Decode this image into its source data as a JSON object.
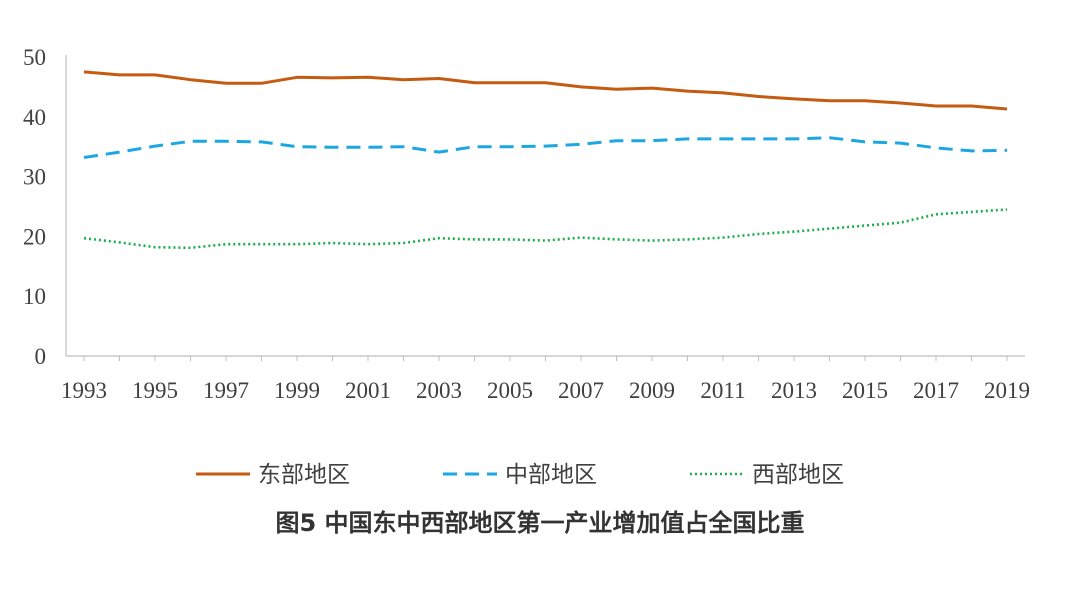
{
  "caption": "图5  中国东中西部地区第一产业增加值占全国比重",
  "colors": {
    "east": "#C55A11",
    "central": "#1CA7E1",
    "west": "#1AAF4B",
    "axis": "#bfbfbf",
    "text": "#404040"
  },
  "chart_data": {
    "type": "line",
    "title": "",
    "xlabel": "",
    "ylabel": "",
    "ylim": [
      0,
      50
    ],
    "yticks": [
      0,
      10,
      20,
      30,
      40,
      50
    ],
    "xticks": [
      1993,
      1995,
      1997,
      1999,
      2001,
      2003,
      2005,
      2007,
      2009,
      2011,
      2013,
      2015,
      2017,
      2019
    ],
    "grid": false,
    "legend_position": "bottom",
    "x": [
      1993,
      1994,
      1995,
      1996,
      1997,
      1998,
      1999,
      2000,
      2001,
      2002,
      2003,
      2004,
      2005,
      2006,
      2007,
      2008,
      2009,
      2010,
      2011,
      2012,
      2013,
      2014,
      2015,
      2016,
      2017,
      2018,
      2019
    ],
    "series": [
      {
        "name": "东部地区",
        "color": "#C55A11",
        "style": "solid",
        "values": [
          47.5,
          47.0,
          47.0,
          46.2,
          45.6,
          45.6,
          46.6,
          46.5,
          46.6,
          46.2,
          46.4,
          45.7,
          45.7,
          45.7,
          45.0,
          44.6,
          44.8,
          44.3,
          44.0,
          43.4,
          43.0,
          42.7,
          42.7,
          42.3,
          41.8,
          41.8,
          41.3
        ]
      },
      {
        "name": "中部地区",
        "color": "#1CA7E1",
        "style": "dashed",
        "values": [
          33.2,
          34.1,
          35.1,
          35.9,
          35.9,
          35.8,
          35.0,
          34.9,
          34.9,
          35.0,
          34.1,
          35.0,
          35.0,
          35.1,
          35.4,
          36.0,
          36.0,
          36.3,
          36.3,
          36.3,
          36.3,
          36.5,
          35.8,
          35.6,
          34.8,
          34.3,
          34.4
        ]
      },
      {
        "name": "西部地区",
        "color": "#1AAF4B",
        "style": "dotted",
        "values": [
          19.7,
          19.0,
          18.2,
          18.1,
          18.7,
          18.7,
          18.7,
          18.9,
          18.7,
          18.9,
          19.7,
          19.5,
          19.5,
          19.3,
          19.8,
          19.5,
          19.3,
          19.5,
          19.8,
          20.4,
          20.8,
          21.3,
          21.8,
          22.3,
          23.7,
          24.1,
          24.5
        ]
      }
    ]
  }
}
